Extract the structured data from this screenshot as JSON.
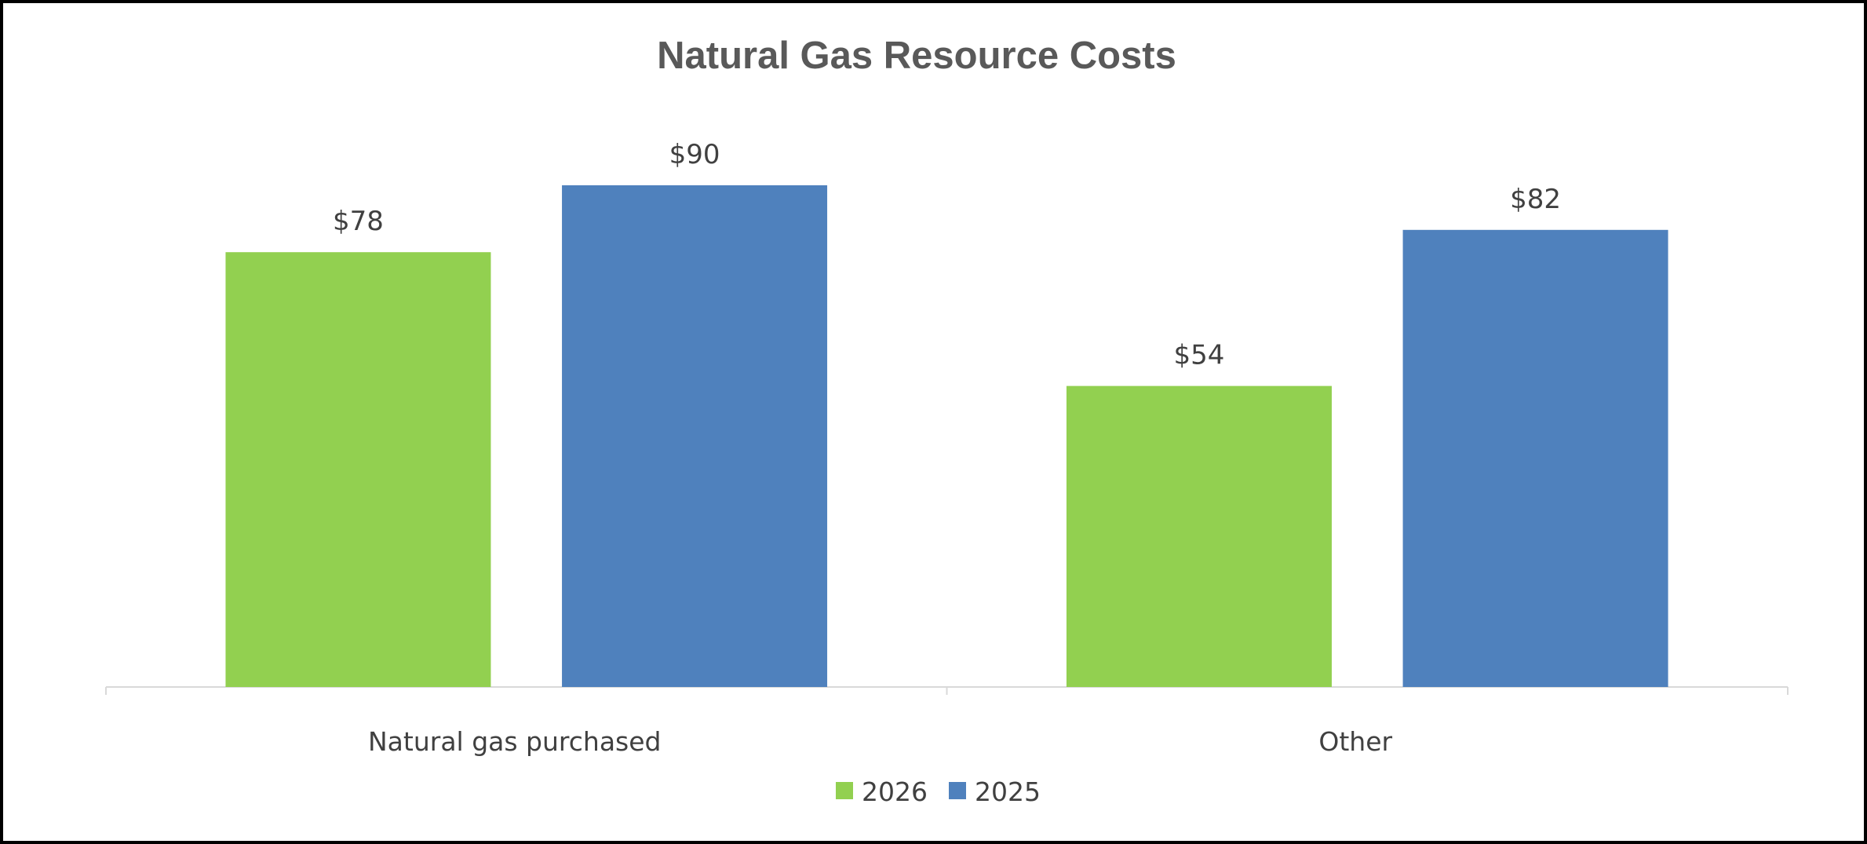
{
  "chart_data": {
    "type": "bar",
    "title": "Natural Gas Resource Costs",
    "xlabel": "",
    "ylabel": "",
    "categories": [
      "Natural gas purchased",
      "Other"
    ],
    "series": [
      {
        "name": "2026",
        "values": [
          78,
          54
        ],
        "labels": [
          "$78",
          "$54"
        ],
        "color": "#92d050"
      },
      {
        "name": "2025",
        "values": [
          90,
          82
        ],
        "labels": [
          "$90",
          "$82"
        ],
        "color": "#4f81bd"
      }
    ],
    "ylim": [
      0,
      100
    ],
    "grid": false,
    "legend_position": "bottom"
  }
}
